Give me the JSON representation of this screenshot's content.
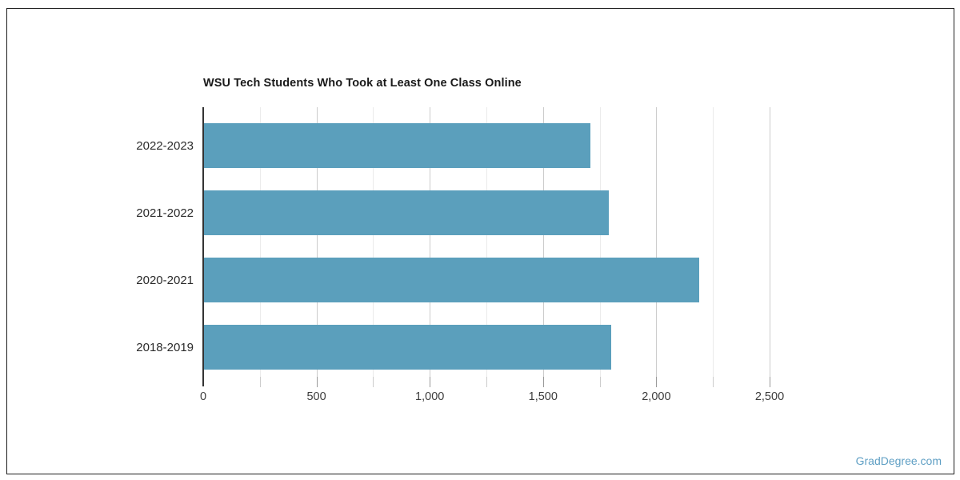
{
  "page": {
    "watermark": "GradDegree.com"
  },
  "colors": {
    "bar": "#5b9fbc",
    "axis_line": "#333333",
    "grid_major": "#cccccc",
    "grid_minor": "#ebebeb",
    "tick_major": "#999999",
    "tick_minor": "#cccccc",
    "title_text": "#1a1a1a",
    "category_text": "#2b2b2b",
    "tick_text": "#3d3d3d",
    "watermark_text": "#5f9fc4",
    "frame_border": "#1c1c1c"
  },
  "chart_data": {
    "type": "bar",
    "orientation": "horizontal",
    "title": "WSU Tech Students Who Took at Least One Class Online",
    "categories": [
      "2022-2023",
      "2021-2022",
      "2020-2021",
      "2018-2019"
    ],
    "values": [
      1710,
      1790,
      2190,
      1800
    ],
    "xlabel": "",
    "ylabel": "",
    "xlim": [
      0,
      2500
    ],
    "x_ticks": [
      0,
      500,
      1000,
      1500,
      2000,
      2500
    ],
    "x_tick_labels": [
      "0",
      "500",
      "1,000",
      "1,500",
      "2,000",
      "2,500"
    ],
    "minor_tick_step": 250,
    "grid": true,
    "legend": "none",
    "bar_color": "#5b9fbc"
  }
}
